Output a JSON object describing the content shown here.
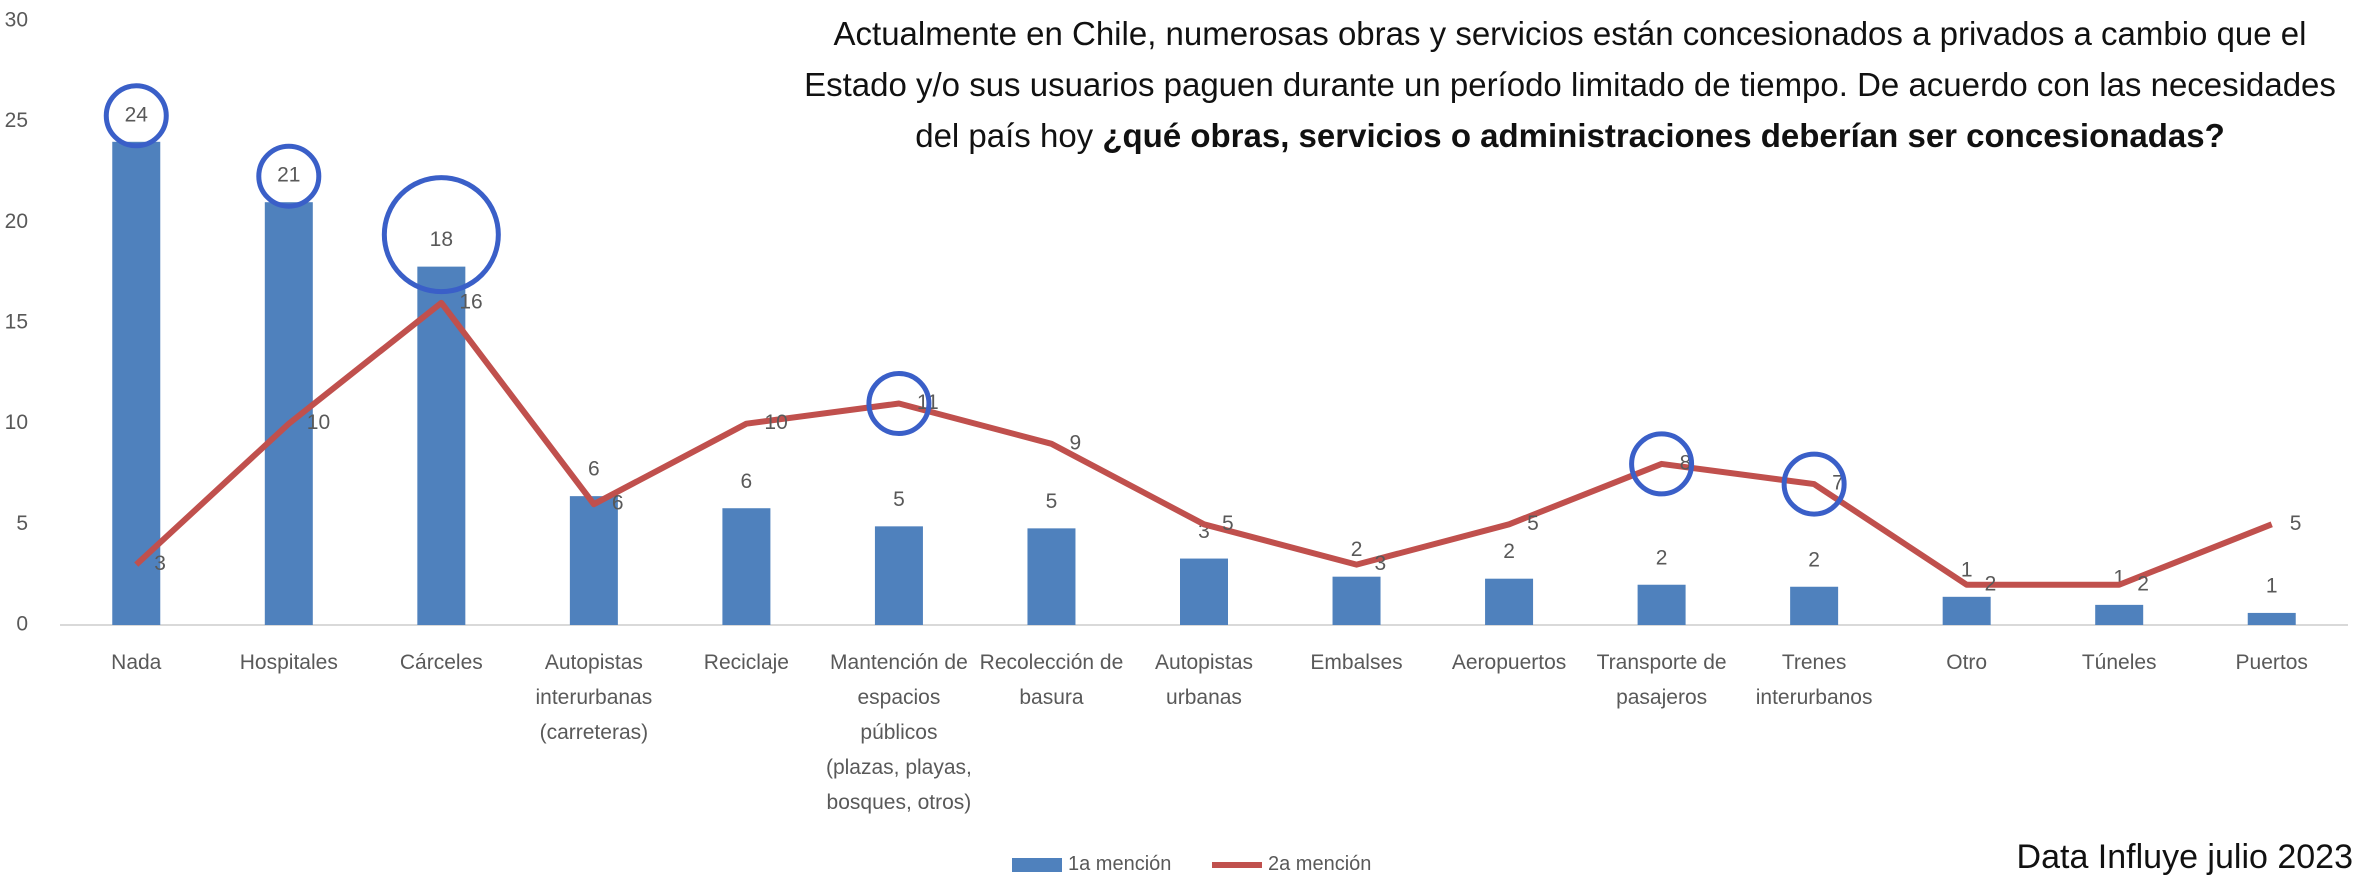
{
  "chart_data": {
    "type": "bar-line",
    "title": "Actualmente en Chile, numerosas obras y servicios están concesionados a privados a cambio que el Estado y/o sus usuarios paguen durante un período limitado de tiempo. De acuerdo con las necesidades del país hoy",
    "title_bold": "¿qué obras, servicios o administraciones deberían ser concesionadas?",
    "source": "Data Influye julio 2023",
    "categories": [
      "Nada",
      "Hospitales",
      "Cárceles",
      "Autopistas\ninterurbanas\n(carreteras)",
      "Reciclaje",
      "Mantención de\nespacios\npúblicos\n(plazas, playas,\nbosques, otros)",
      "Recolección de\nbasura",
      "Autopistas\nurbanas",
      "Embalses",
      "Aeropuertos",
      "Transporte de\npasajeros",
      "Trenes\ninterurbanos",
      "Otro",
      "Túneles",
      "Puertos"
    ],
    "series": [
      {
        "name": "1a mención",
        "type": "bar",
        "color": "#4f81bd",
        "values": [
          24,
          21,
          17.8,
          6.4,
          5.8,
          4.9,
          4.8,
          3.3,
          2.4,
          2.3,
          2,
          1.9,
          1.4,
          1,
          0.6
        ],
        "value_labels": [
          "24",
          "21",
          "18",
          "6",
          "6",
          "5",
          "5",
          "3",
          "2",
          "2",
          "2",
          "2",
          "1",
          "1",
          "1"
        ]
      },
      {
        "name": "2a mención",
        "type": "line",
        "color": "#c0504d",
        "values": [
          3,
          10,
          16,
          6,
          10,
          11,
          9,
          5,
          3,
          5,
          8,
          7,
          2,
          2,
          5
        ]
      }
    ],
    "ylim": [
      0,
      30
    ],
    "yticks": [
      0,
      5,
      10,
      15,
      20,
      25,
      30
    ],
    "grid": false
  }
}
